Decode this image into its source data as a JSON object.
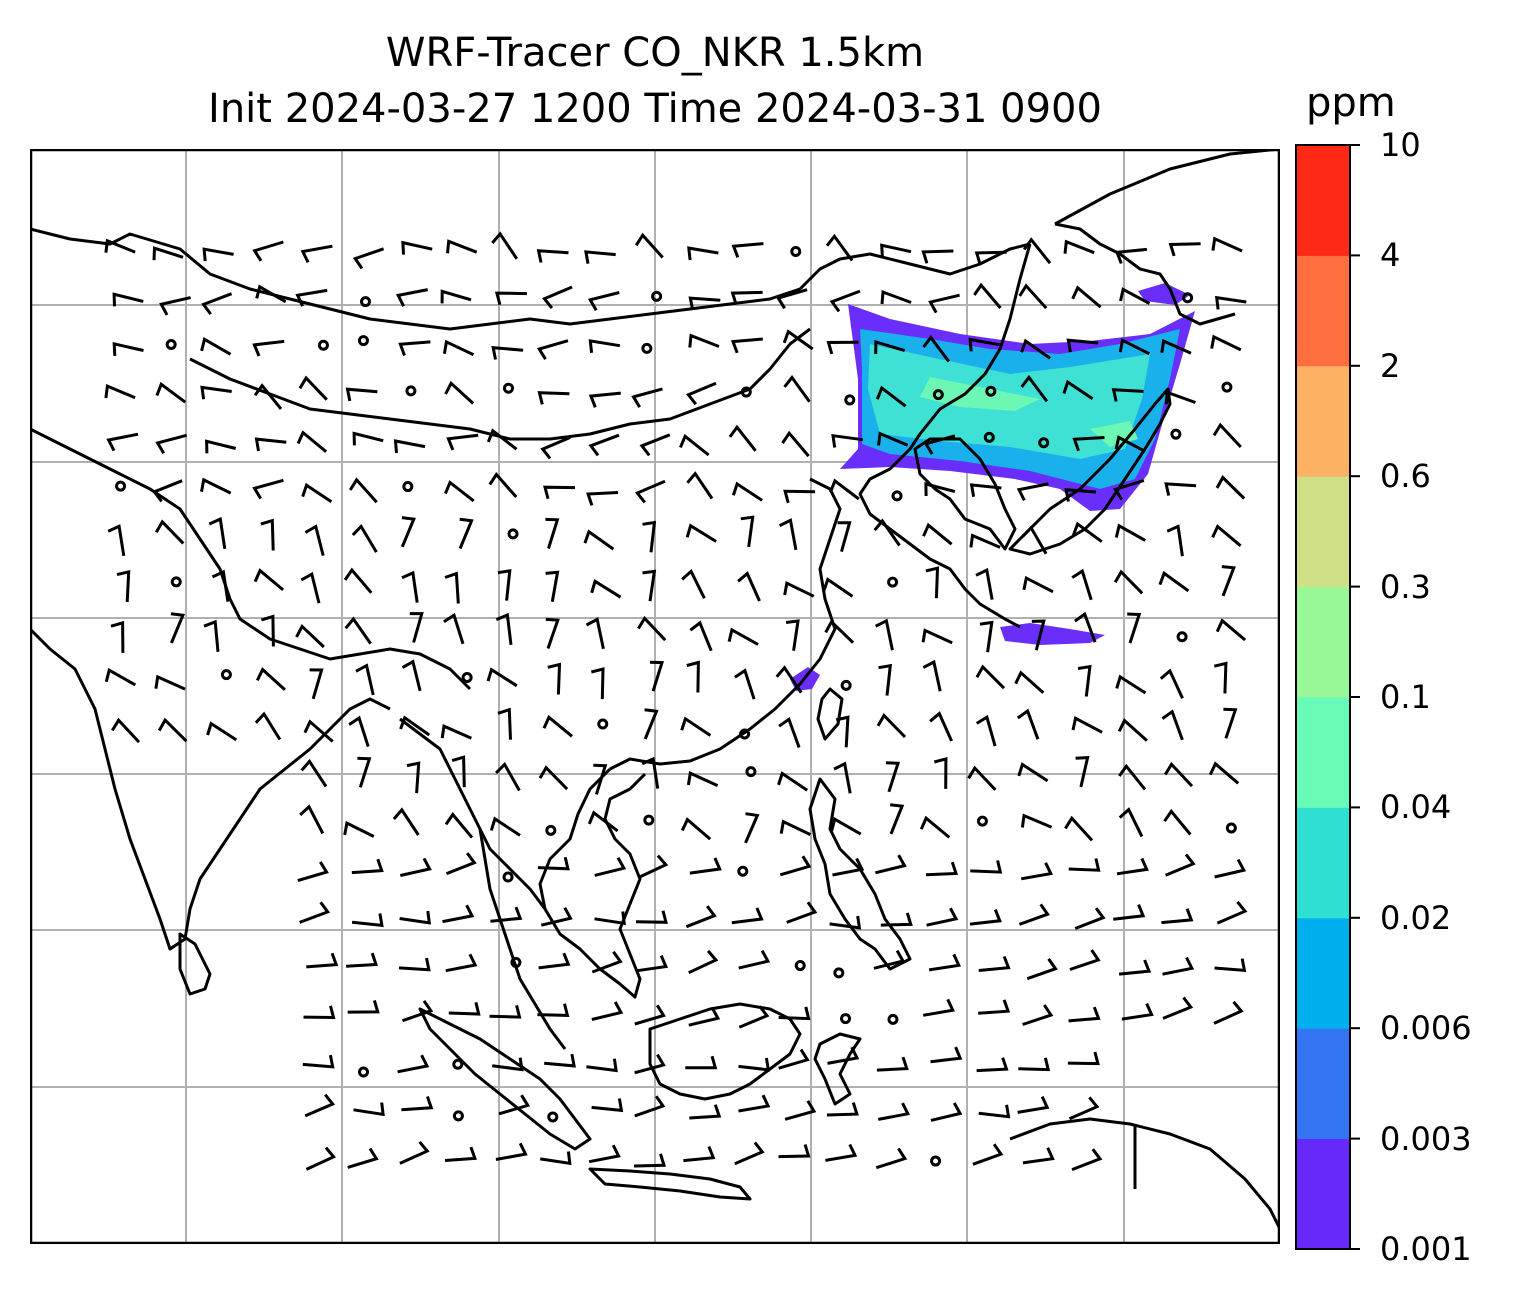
{
  "title": {
    "line1": "WRF-Tracer CO_NKR 1.5km",
    "line2": "Init 2024-03-27 1200 Time 2024-03-31 0900"
  },
  "colorbar": {
    "unit": "ppm",
    "ticks": [
      "10",
      "4",
      "2",
      "0.6",
      "0.3",
      "0.1",
      "0.04",
      "0.02",
      "0.006",
      "0.003",
      "0.001"
    ],
    "colors": [
      "#6629fa",
      "#3374f2",
      "#00b0ee",
      "#2fe0d2",
      "#68fbb8",
      "#98f897",
      "#cfe187",
      "#fdb163",
      "#fd6f3e",
      "#fe2a16"
    ]
  },
  "map": {
    "plume_colors": {
      "outer": "#6a2efa",
      "mid": "#1ab0ec",
      "inner": "#3fe1d4",
      "core": "#6df7b4"
    },
    "gridline_color": "#b0b0b0",
    "coast_color": "#000000"
  }
}
